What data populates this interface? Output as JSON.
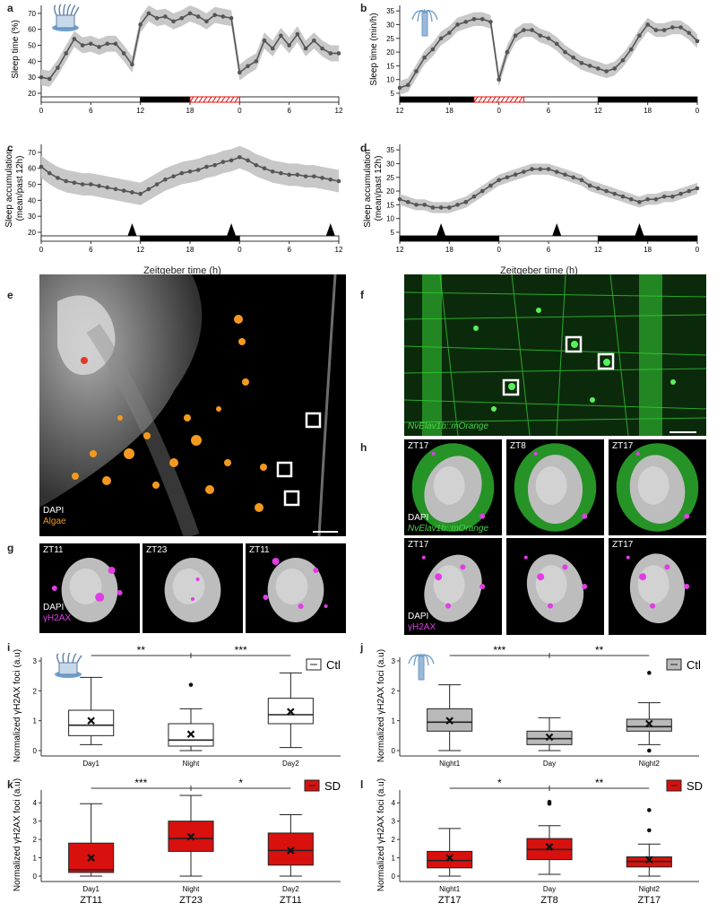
{
  "panels": {
    "a": {
      "label": "a",
      "ylabel": "Sleep time (%)",
      "yticks": [
        20,
        30,
        40,
        50,
        60,
        70
      ],
      "xticks": [
        "0",
        "6",
        "12",
        "18",
        "0",
        "6",
        "12"
      ]
    },
    "b": {
      "label": "b",
      "ylabel": "Sleep time (min/h)",
      "yticks": [
        5,
        10,
        15,
        20,
        25,
        30,
        35
      ],
      "xticks": [
        "12",
        "18",
        "0",
        "6",
        "12",
        "18",
        "0"
      ]
    },
    "c": {
      "label": "c",
      "ylabel_lines": [
        "Sleep accumulation",
        "(mean/past 12h)"
      ],
      "yticks": [
        20,
        30,
        40,
        50,
        60,
        70
      ],
      "xticks": [
        "0",
        "6",
        "12",
        "18",
        "0",
        "6",
        "12"
      ]
    },
    "d": {
      "label": "d",
      "ylabel_lines": [
        "Sleep accumulation",
        "(mean/past 12h)"
      ],
      "yticks": [
        5,
        10,
        15,
        20,
        25,
        30,
        35
      ],
      "xticks": [
        "12",
        "18",
        "0",
        "6",
        "12",
        "18",
        "0"
      ]
    },
    "cd_xlabel": "Zeitgeber time (h)",
    "e": {
      "label": "e",
      "caption_dapi": "DAPI",
      "caption_algae": "Algae"
    },
    "f": {
      "label": "f",
      "caption": "NvElav1b::mOrange"
    },
    "g": {
      "label": "g",
      "cells": [
        "ZT11",
        "ZT23",
        "ZT11"
      ],
      "caption_dapi": "DAPI",
      "caption_marker": "γH2AX"
    },
    "h": {
      "label": "h",
      "row1": [
        "ZT17",
        "ZT8",
        "ZT17"
      ],
      "row2": [
        "ZT17",
        "",
        "ZT17"
      ],
      "caption1_dapi": "DAPI",
      "caption1_marker": "NvElav1b::mOrange",
      "caption2_dapi": "DAPI",
      "caption2_marker": "γH2AX"
    },
    "i": {
      "label": "i",
      "legend": "Ctl",
      "sig": [
        "**",
        "***"
      ],
      "yticks": [
        "0",
        "1",
        "2",
        "3"
      ]
    },
    "j": {
      "label": "j",
      "legend": "Ctl",
      "sig": [
        "***",
        "**"
      ],
      "yticks": [
        "0",
        "1",
        "2",
        "3"
      ]
    },
    "k": {
      "label": "k",
      "legend": "SD",
      "sig": [
        "***",
        "*"
      ],
      "yticks": [
        "0",
        "1",
        "2",
        "3",
        "4"
      ]
    },
    "l": {
      "label": "l",
      "legend": "SD",
      "sig": [
        "*",
        "**"
      ],
      "yticks": [
        "0",
        "1",
        "2",
        "3",
        "4"
      ]
    },
    "ij_ylabel": "Normalized γH2AX foci (a.u)",
    "kl_ylabel": "Normalized γH2AX foci (a.u)"
  },
  "chart_data": [
    {
      "id": "a",
      "type": "line",
      "x": [
        0,
        1,
        2,
        3,
        4,
        5,
        6,
        7,
        8,
        9,
        10,
        11,
        12,
        13,
        14,
        15,
        16,
        17,
        18,
        19,
        20,
        21,
        22,
        23,
        24,
        25,
        26,
        27,
        28,
        29,
        30,
        31,
        32,
        33,
        34,
        35,
        36
      ],
      "series": [
        {
          "values": [
            30,
            29,
            36,
            45,
            54,
            50,
            51,
            49,
            51,
            51,
            45,
            38,
            63,
            70,
            67,
            68,
            65,
            67,
            70,
            68,
            65,
            69,
            68,
            67,
            33,
            37,
            40,
            53,
            48,
            56,
            50,
            57,
            48,
            53,
            48,
            45,
            45
          ],
          "band": 5
        }
      ],
      "xlim": [
        0,
        36
      ],
      "ylim": [
        20,
        75
      ],
      "light_bar": [
        {
          "start": 0,
          "end": 12,
          "dark": false
        },
        {
          "start": 12,
          "end": 24,
          "dark": true
        },
        {
          "start": 24,
          "end": 36,
          "dark": false
        }
      ],
      "deprivation": [
        18,
        24
      ]
    },
    {
      "id": "b",
      "type": "line",
      "x": [
        0,
        1,
        2,
        3,
        4,
        5,
        6,
        7,
        8,
        9,
        10,
        11,
        12,
        13,
        14,
        15,
        16,
        17,
        18,
        19,
        20,
        21,
        22,
        23,
        24,
        25,
        26,
        27,
        28,
        29,
        30,
        31,
        32,
        33,
        34,
        35,
        36
      ],
      "series": [
        {
          "values": [
            7,
            8,
            13,
            18,
            21,
            25,
            27,
            30,
            31,
            32,
            32,
            31,
            10,
            20,
            26,
            28,
            28,
            26,
            25,
            23,
            20,
            18,
            16,
            15,
            14,
            13,
            14,
            17,
            21,
            26,
            30,
            28,
            28,
            29,
            29,
            27,
            24
          ],
          "band": 2.5
        }
      ],
      "xlim": [
        0,
        36
      ],
      "ylim": [
        5,
        37
      ],
      "light_bar": [
        {
          "start": 0,
          "end": 12,
          "dark": true
        },
        {
          "start": 12,
          "end": 24,
          "dark": false
        },
        {
          "start": 24,
          "end": 36,
          "dark": true
        }
      ],
      "deprivation": [
        9,
        15
      ]
    },
    {
      "id": "c",
      "type": "line",
      "x": [
        0,
        1,
        2,
        3,
        4,
        5,
        6,
        7,
        8,
        9,
        10,
        11,
        12,
        13,
        14,
        15,
        16,
        17,
        18,
        19,
        20,
        21,
        22,
        23,
        24,
        25,
        26,
        27,
        28,
        29,
        30,
        31,
        32,
        33,
        34,
        35,
        36
      ],
      "series": [
        {
          "values": [
            61,
            57,
            54,
            52,
            51,
            50,
            50,
            49,
            48,
            47,
            46,
            45,
            44,
            47,
            50,
            53,
            55,
            57,
            58,
            59,
            61,
            62,
            64,
            65,
            67,
            65,
            62,
            60,
            58,
            57,
            56,
            56,
            55,
            55,
            54,
            53,
            52
          ],
          "band": 7
        }
      ],
      "xlim": [
        0,
        36
      ],
      "ylim": [
        20,
        75
      ],
      "light_bar": [
        {
          "start": 0,
          "end": 12,
          "dark": false
        },
        {
          "start": 12,
          "end": 24,
          "dark": true
        },
        {
          "start": 24,
          "end": 36,
          "dark": false
        }
      ],
      "markers": [
        11,
        23,
        35
      ]
    },
    {
      "id": "d",
      "type": "line",
      "x": [
        0,
        1,
        2,
        3,
        4,
        5,
        6,
        7,
        8,
        9,
        10,
        11,
        12,
        13,
        14,
        15,
        16,
        17,
        18,
        19,
        20,
        21,
        22,
        23,
        24,
        25,
        26,
        27,
        28,
        29,
        30,
        31,
        32,
        33,
        34,
        35,
        36
      ],
      "series": [
        {
          "values": [
            17,
            16,
            15,
            15,
            14,
            14,
            14,
            15,
            16,
            18,
            20,
            22,
            24,
            25,
            26,
            27,
            28,
            28,
            28,
            27,
            26,
            25,
            24,
            22,
            21,
            20,
            19,
            18,
            17,
            16,
            17,
            17,
            18,
            18,
            19,
            20,
            21
          ],
          "band": 2
        }
      ],
      "xlim": [
        0,
        36
      ],
      "ylim": [
        5,
        37
      ],
      "light_bar": [
        {
          "start": 0,
          "end": 12,
          "dark": true
        },
        {
          "start": 12,
          "end": 24,
          "dark": false
        },
        {
          "start": 24,
          "end": 36,
          "dark": true
        }
      ],
      "markers": [
        5,
        19,
        29
      ]
    },
    {
      "id": "i",
      "type": "box",
      "color": "#ffffff",
      "ylim": [
        0,
        3
      ],
      "categories": [
        "Day1",
        "Night",
        "Day2"
      ],
      "boxes": [
        {
          "min": 0.2,
          "q1": 0.5,
          "median": 0.85,
          "q3": 1.35,
          "max": 2.45,
          "mean": 1.0,
          "outliers": []
        },
        {
          "min": 0.0,
          "q1": 0.15,
          "median": 0.35,
          "q3": 0.9,
          "max": 1.4,
          "mean": 0.55,
          "outliers": [
            2.2
          ]
        },
        {
          "min": 0.1,
          "q1": 0.9,
          "median": 1.2,
          "q3": 1.75,
          "max": 2.6,
          "mean": 1.3,
          "outliers": []
        }
      ]
    },
    {
      "id": "j",
      "type": "box",
      "color": "#b9b9b9",
      "ylim": [
        0,
        3
      ],
      "categories": [
        "Night1",
        "Day",
        "Night2"
      ],
      "boxes": [
        {
          "min": 0.0,
          "q1": 0.65,
          "median": 0.95,
          "q3": 1.4,
          "max": 2.2,
          "mean": 1.0,
          "outliers": []
        },
        {
          "min": 0.0,
          "q1": 0.2,
          "median": 0.4,
          "q3": 0.65,
          "max": 1.1,
          "mean": 0.45,
          "outliers": []
        },
        {
          "min": 0.2,
          "q1": 0.65,
          "median": 0.8,
          "q3": 1.05,
          "max": 1.6,
          "mean": 0.9,
          "outliers": [
            2.6,
            0.0
          ]
        }
      ]
    },
    {
      "id": "k",
      "type": "box",
      "color": "#d8100e",
      "ylim": [
        0,
        4.5
      ],
      "categories": [
        "Day1",
        "Night",
        "Day2"
      ],
      "sublabels": [
        "ZT11",
        "ZT23",
        "ZT11"
      ],
      "boxes": [
        {
          "min": 0.0,
          "q1": 0.2,
          "median": 0.35,
          "q3": 1.8,
          "max": 3.95,
          "mean": 1.0,
          "outliers": []
        },
        {
          "min": 0.0,
          "q1": 1.35,
          "median": 2.05,
          "q3": 3.0,
          "max": 4.4,
          "mean": 2.15,
          "outliers": []
        },
        {
          "min": 0.0,
          "q1": 0.6,
          "median": 1.4,
          "q3": 2.35,
          "max": 3.35,
          "mean": 1.4,
          "outliers": []
        }
      ]
    },
    {
      "id": "l",
      "type": "box",
      "color": "#d8100e",
      "ylim": [
        0,
        4.5
      ],
      "categories": [
        "Night1",
        "Day",
        "Night2"
      ],
      "sublabels": [
        "ZT17",
        "ZT8",
        "ZT17"
      ],
      "boxes": [
        {
          "min": 0.0,
          "q1": 0.45,
          "median": 0.85,
          "q3": 1.35,
          "max": 2.6,
          "mean": 1.0,
          "outliers": []
        },
        {
          "min": 0.1,
          "q1": 0.9,
          "median": 1.45,
          "q3": 2.05,
          "max": 2.75,
          "mean": 1.6,
          "outliers": [
            3.95,
            4.05
          ]
        },
        {
          "min": 0.0,
          "q1": 0.5,
          "median": 0.8,
          "q3": 1.05,
          "max": 1.75,
          "mean": 0.9,
          "outliers": [
            2.5,
            3.6
          ]
        }
      ]
    }
  ]
}
